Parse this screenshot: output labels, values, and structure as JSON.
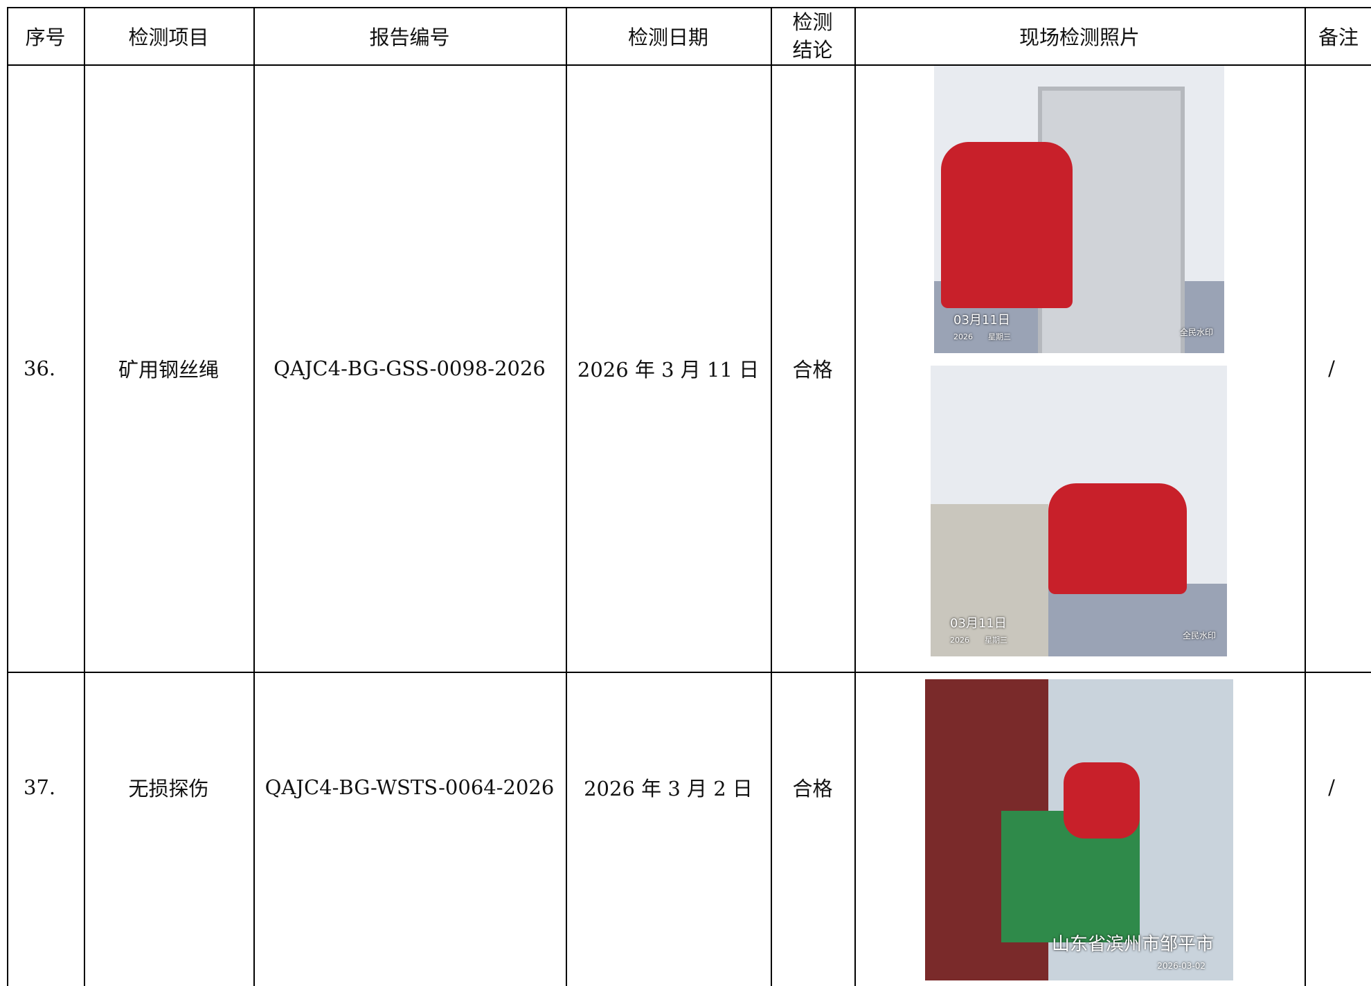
{
  "table": {
    "headers": [
      "序号",
      "检测项目",
      "报告编号",
      "检测日期",
      "检测结论",
      "现场检测照片",
      "备注"
    ],
    "rows": [
      {
        "no": "36.",
        "item": "矿用钢丝绳",
        "report": "QAJC4-BG-GSS-0098-2026",
        "date": "2026 年 3 月 11 日",
        "result": "合格",
        "remark": "/",
        "photos": [
          {
            "date": "03月11日",
            "week": "2026　　星期三",
            "brand": "全民水印"
          },
          {
            "date": "03月11日",
            "week": "2026　　星期三",
            "brand": "全民水印"
          }
        ]
      },
      {
        "no": "37.",
        "item": "无损探伤",
        "report": "QAJC4-BG-WSTS-0064-2026",
        "date": "2026 年 3 月 2 日",
        "result": "合格",
        "remark": "/",
        "photos": [
          {
            "location": "山东省滨州市邹平市",
            "stamp": "2026-03-02"
          }
        ]
      }
    ]
  }
}
